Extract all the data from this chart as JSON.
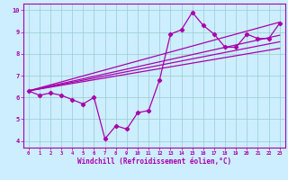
{
  "xlabel": "Windchill (Refroidissement éolien,°C)",
  "bg_color": "#cceeff",
  "line_color": "#aa00aa",
  "grid_color": "#99cccc",
  "xlim": [
    -0.5,
    23.5
  ],
  "ylim": [
    3.7,
    10.3
  ],
  "xticks": [
    0,
    1,
    2,
    3,
    4,
    5,
    6,
    7,
    8,
    9,
    10,
    11,
    12,
    13,
    14,
    15,
    16,
    17,
    18,
    19,
    20,
    21,
    22,
    23
  ],
  "yticks": [
    4,
    5,
    6,
    7,
    8,
    9,
    10
  ],
  "main_x": [
    0,
    1,
    2,
    3,
    4,
    5,
    6,
    7,
    8,
    9,
    10,
    11,
    12,
    13,
    14,
    15,
    16,
    17,
    18,
    19,
    20,
    21,
    22,
    23
  ],
  "main_y": [
    6.3,
    6.1,
    6.2,
    6.1,
    5.9,
    5.7,
    6.0,
    4.1,
    4.7,
    4.55,
    5.3,
    5.4,
    6.8,
    8.9,
    9.1,
    9.9,
    9.3,
    8.9,
    8.3,
    8.3,
    8.9,
    8.7,
    8.7,
    9.4
  ],
  "line2_x": [
    0,
    23
  ],
  "line2_y": [
    6.3,
    8.25
  ],
  "line3_x": [
    0,
    23
  ],
  "line3_y": [
    6.3,
    8.55
  ],
  "line4_x": [
    0,
    23
  ],
  "line4_y": [
    6.3,
    8.85
  ],
  "line5_x": [
    0,
    23
  ],
  "line5_y": [
    6.3,
    9.45
  ]
}
